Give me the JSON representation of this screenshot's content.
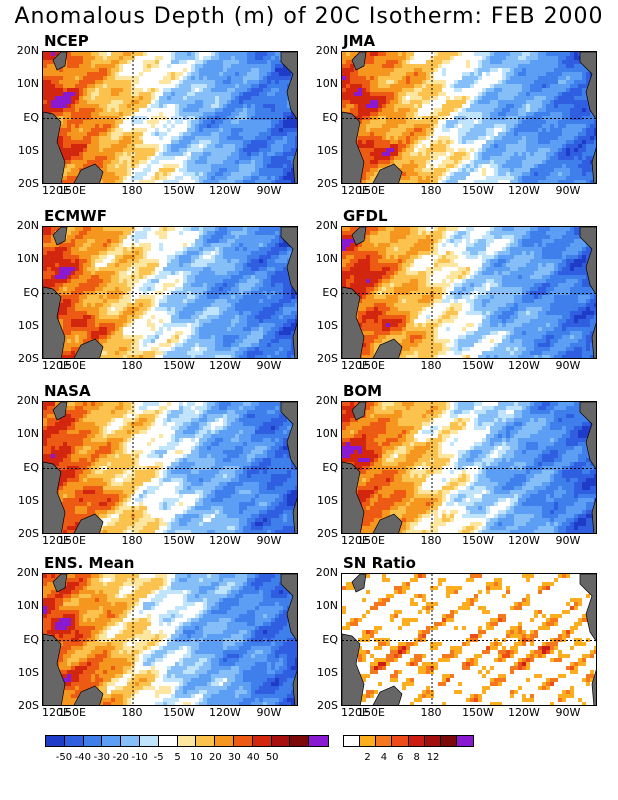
{
  "title": "Anomalous Depth (m) of 20C Isotherm: FEB 2000",
  "panels": [
    {
      "label": "NCEP"
    },
    {
      "label": "JMA"
    },
    {
      "label": "ECMWF"
    },
    {
      "label": "GFDL"
    },
    {
      "label": "NASA"
    },
    {
      "label": "BOM"
    },
    {
      "label": "ENS. Mean"
    },
    {
      "label": "SN Ratio"
    }
  ],
  "y_ticks": [
    "20N",
    "10N",
    "EQ",
    "10S",
    "20S"
  ],
  "x_ticks": [
    "120E",
    "150E",
    "180",
    "150W",
    "120W",
    "90W"
  ],
  "colorbar_anomaly": {
    "colors": [
      "#1e3cc8",
      "#2f5fe0",
      "#3f7fec",
      "#5c9ef4",
      "#86bff8",
      "#bfe4fb",
      "#ffffff",
      "#fde6a0",
      "#fcc24e",
      "#f5961e",
      "#ec5a14",
      "#d2260f",
      "#a80f0f",
      "#7d0a0a",
      "#8a1ad2"
    ],
    "labels": [
      "-50",
      "-40",
      "-30",
      "-20",
      "-10",
      "-5",
      "5",
      "10",
      "20",
      "30",
      "40",
      "50"
    ]
  },
  "colorbar_sn": {
    "colors": [
      "#ffffff",
      "#fcae1e",
      "#f5781e",
      "#ee4b1a",
      "#cc1d14",
      "#a30e0e",
      "#7c0a0a",
      "#8a1ad2"
    ],
    "labels": [
      "2",
      "4",
      "6",
      "8",
      "12"
    ]
  },
  "chart_data": [
    {
      "type": "heatmap",
      "title": "NCEP",
      "x_ticks": [
        "120E",
        "150E",
        "180",
        "150W",
        "120W",
        "90W"
      ],
      "y_ticks": [
        "20N",
        "10N",
        "EQ",
        "10S",
        "20S"
      ],
      "reference_lines": [
        "EQ",
        "180"
      ],
      "field": "anomalous depth of 20C isotherm (m)",
      "pattern": "positive anomalies west of 180, negative anomalies east"
    },
    {
      "type": "heatmap",
      "title": "JMA",
      "x_ticks": [
        "120E",
        "150E",
        "180",
        "150W",
        "120W",
        "90W"
      ],
      "y_ticks": [
        "20N",
        "10N",
        "EQ",
        "10S",
        "20S"
      ],
      "reference_lines": [
        "EQ",
        "180"
      ],
      "field": "anomalous depth of 20C isotherm (m)",
      "pattern": "positive anomalies west of 180, negative anomalies east"
    },
    {
      "type": "heatmap",
      "title": "ECMWF",
      "x_ticks": [
        "120E",
        "150E",
        "180",
        "150W",
        "120W",
        "90W"
      ],
      "y_ticks": [
        "20N",
        "10N",
        "EQ",
        "10S",
        "20S"
      ],
      "reference_lines": [
        "EQ",
        "180"
      ],
      "field": "anomalous depth of 20C isotherm (m)",
      "pattern": "positive anomalies west of 180, negative anomalies east"
    },
    {
      "type": "heatmap",
      "title": "GFDL",
      "x_ticks": [
        "120E",
        "150E",
        "180",
        "150W",
        "120W",
        "90W"
      ],
      "y_ticks": [
        "20N",
        "10N",
        "EQ",
        "10S",
        "20S"
      ],
      "reference_lines": [
        "EQ",
        "180"
      ],
      "field": "anomalous depth of 20C isotherm (m)",
      "pattern": "positive anomalies west of 180, negative anomalies east"
    },
    {
      "type": "heatmap",
      "title": "NASA",
      "x_ticks": [
        "120E",
        "150E",
        "180",
        "150W",
        "120W",
        "90W"
      ],
      "y_ticks": [
        "20N",
        "10N",
        "EQ",
        "10S",
        "20S"
      ],
      "reference_lines": [
        "EQ",
        "180"
      ],
      "field": "anomalous depth of 20C isotherm (m)",
      "pattern": "positive anomalies west of 180, negative anomalies east"
    },
    {
      "type": "heatmap",
      "title": "BOM",
      "x_ticks": [
        "120E",
        "150E",
        "180",
        "150W",
        "120W",
        "90W"
      ],
      "y_ticks": [
        "20N",
        "10N",
        "EQ",
        "10S",
        "20S"
      ],
      "reference_lines": [
        "EQ",
        "180"
      ],
      "field": "anomalous depth of 20C isotherm (m)",
      "pattern": "positive anomalies west of 180, negative anomalies east"
    },
    {
      "type": "heatmap",
      "title": "ENS. Mean",
      "x_ticks": [
        "120E",
        "150E",
        "180",
        "150W",
        "120W",
        "90W"
      ],
      "y_ticks": [
        "20N",
        "10N",
        "EQ",
        "10S",
        "20S"
      ],
      "reference_lines": [
        "EQ",
        "180"
      ],
      "field": "anomalous depth of 20C isotherm (m)",
      "pattern": "positive anomalies west of 180, negative anomalies east"
    },
    {
      "type": "heatmap",
      "title": "SN Ratio",
      "x_ticks": [
        "120E",
        "150E",
        "180",
        "150W",
        "120W",
        "90W"
      ],
      "y_ticks": [
        "20N",
        "10N",
        "EQ",
        "10S",
        "20S"
      ],
      "reference_lines": [
        "EQ",
        "180"
      ],
      "field": "signal-to-noise ratio",
      "pattern": "scattered high values concentrated in western and central Pacific"
    }
  ]
}
